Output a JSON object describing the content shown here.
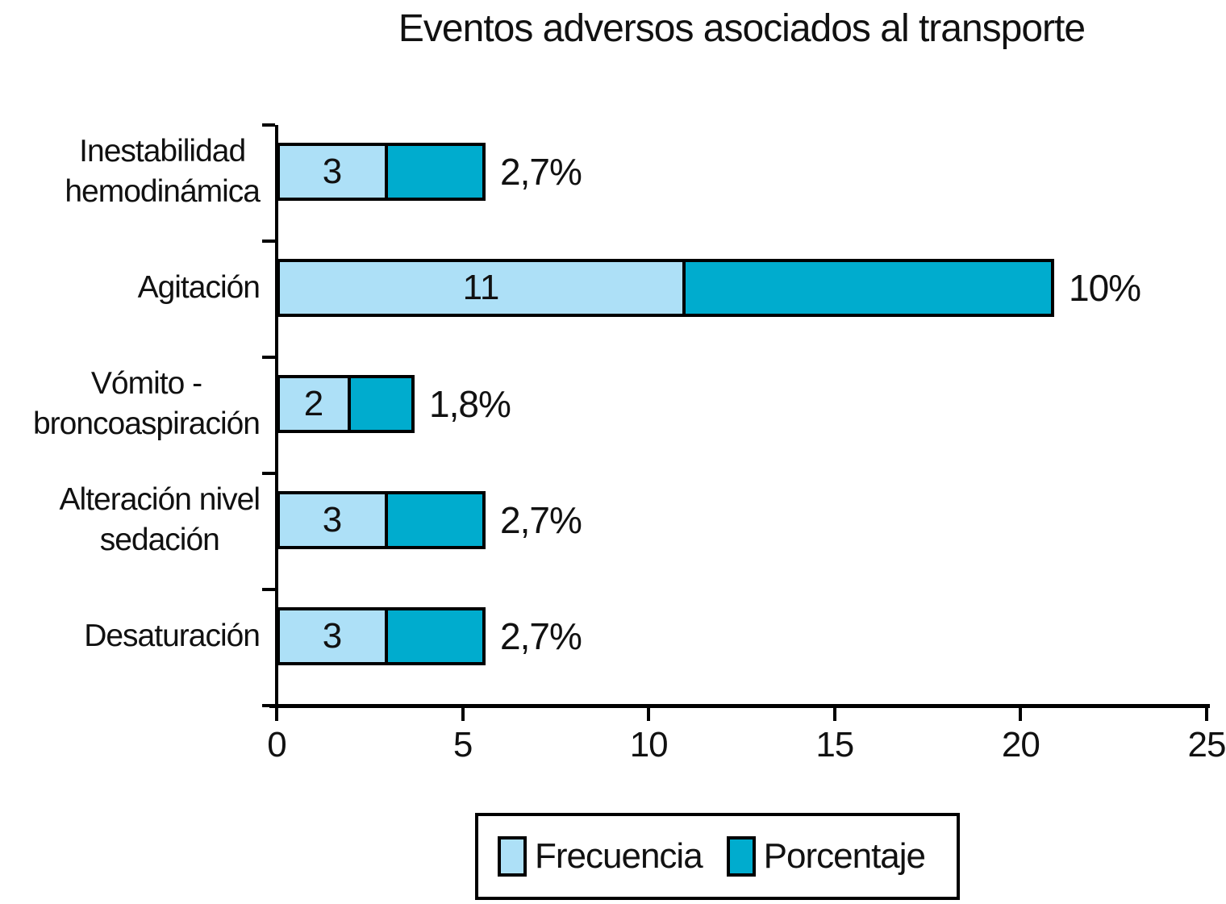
{
  "title": "Eventos adversos asociados al transporte",
  "colors": {
    "frecuencia": "#ADE0F7",
    "porcentaje": "#00ACCE",
    "axis": "#000000",
    "text": "#111111",
    "background": "#FFFFFF"
  },
  "legend": {
    "items": [
      {
        "label": "Frecuencia",
        "color_key": "frecuencia"
      },
      {
        "label": "Porcentaje",
        "color_key": "porcentaje"
      }
    ]
  },
  "chart_data": {
    "type": "bar",
    "orientation": "horizontal",
    "stacked": true,
    "title": "Eventos adversos asociados al transporte",
    "categories": [
      "Inestabilidad\nhemodinámica",
      "Agitación",
      "Vómito -\nbroncoaspiración",
      "Alteración nivel\nsedación",
      "Desaturación"
    ],
    "series": [
      {
        "name": "Frecuencia",
        "values": [
          3,
          11,
          2,
          3,
          3
        ],
        "color_key": "frecuencia"
      },
      {
        "name": "Porcentaje",
        "values": [
          2.7,
          10,
          1.8,
          2.7,
          2.7
        ],
        "color_key": "porcentaje"
      }
    ],
    "segment_labels": [
      "3",
      "11",
      "2",
      "3",
      "3"
    ],
    "end_labels": [
      "2,7%",
      "10%",
      "1,8%",
      "2,7%",
      "2,7%"
    ],
    "xlim": [
      0,
      25
    ],
    "x_ticks": [
      "0",
      "5",
      "10",
      "15",
      "20",
      "25"
    ],
    "grid": false,
    "legend_position": "bottom-center"
  }
}
